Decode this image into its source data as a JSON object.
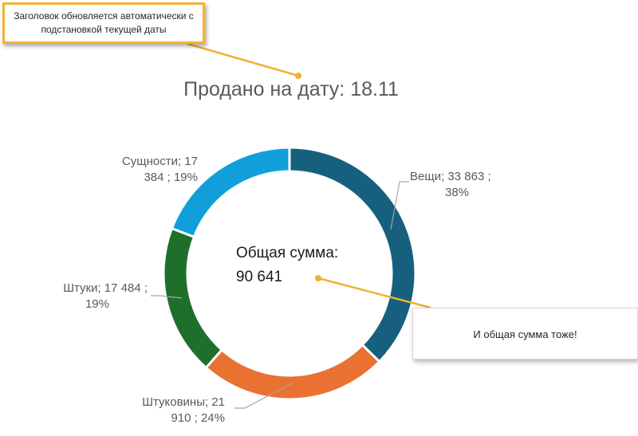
{
  "callouts": {
    "top_line1": "Заголовок обновляется автоматически с",
    "top_line2": "подстановкой текущей даты",
    "right": "И общая сумма тоже!"
  },
  "chart_data": {
    "type": "pie",
    "variant": "doughnut",
    "title": "Продано на дату: 18.11",
    "center_label": {
      "line1": "Общая сумма:",
      "line2": "90 641"
    },
    "slices": [
      {
        "name": "Вещи",
        "value": 33863,
        "percent": 38,
        "color": "#16607e",
        "label_line1": "Вещи;  33 863 ;",
        "label_line2": "38%"
      },
      {
        "name": "Штуковины",
        "value": 21910,
        "percent": 24,
        "color": "#e97132",
        "label_line1": "Штуковины;  21",
        "label_line2": "910 ; 24%"
      },
      {
        "name": "Штуки",
        "value": 17484,
        "percent": 19,
        "color": "#1e6f2a",
        "label_line1": "Штуки;  17 484 ;",
        "label_line2": "19%"
      },
      {
        "name": "Сущности",
        "value": 17384,
        "percent": 19,
        "color": "#119fda",
        "label_line1": "Сущности;  17",
        "label_line2": "384 ; 19%"
      }
    ],
    "legend": "none"
  }
}
